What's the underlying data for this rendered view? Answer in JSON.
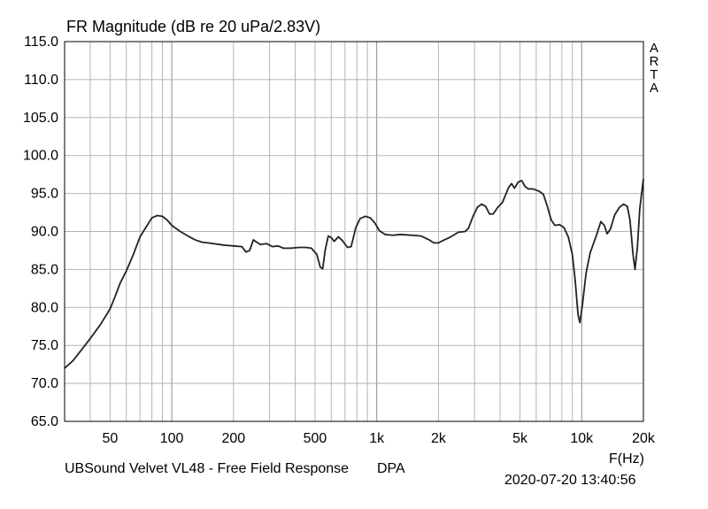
{
  "chart_data": {
    "type": "line",
    "title": "FR Magnitude (dB re 20 uPa/2.83V)",
    "xlabel": "F(Hz)",
    "ylabel": "",
    "x_scale": "log",
    "xlim": [
      30,
      20000
    ],
    "ylim": [
      65,
      115
    ],
    "grid": true,
    "x_ticks": [
      {
        "value": 50,
        "label": "50"
      },
      {
        "value": 100,
        "label": "100"
      },
      {
        "value": 200,
        "label": "200"
      },
      {
        "value": 500,
        "label": "500"
      },
      {
        "value": 1000,
        "label": "1k"
      },
      {
        "value": 2000,
        "label": "2k"
      },
      {
        "value": 5000,
        "label": "5k"
      },
      {
        "value": 10000,
        "label": "10k"
      },
      {
        "value": 20000,
        "label": "20k"
      }
    ],
    "y_ticks": [
      {
        "value": 65,
        "label": "65.0"
      },
      {
        "value": 70,
        "label": "70.0"
      },
      {
        "value": 75,
        "label": "75.0"
      },
      {
        "value": 80,
        "label": "80.0"
      },
      {
        "value": 85,
        "label": "85.0"
      },
      {
        "value": 90,
        "label": "90.0"
      },
      {
        "value": 95,
        "label": "95.0"
      },
      {
        "value": 100,
        "label": "100.0"
      },
      {
        "value": 105,
        "label": "105.0"
      },
      {
        "value": 110,
        "label": "110.0"
      },
      {
        "value": 115,
        "label": "115.0"
      }
    ],
    "series": [
      {
        "values": [
          [
            30,
            72.0
          ],
          [
            33,
            73.0
          ],
          [
            36,
            74.3
          ],
          [
            40,
            75.9
          ],
          [
            45,
            77.8
          ],
          [
            50,
            79.8
          ],
          [
            53,
            81.5
          ],
          [
            56,
            83.2
          ],
          [
            60,
            84.8
          ],
          [
            65,
            87.0
          ],
          [
            70,
            89.3
          ],
          [
            75,
            90.6
          ],
          [
            80,
            91.8
          ],
          [
            85,
            92.1
          ],
          [
            90,
            92.0
          ],
          [
            95,
            91.5
          ],
          [
            100,
            90.8
          ],
          [
            110,
            90.0
          ],
          [
            120,
            89.4
          ],
          [
            130,
            88.9
          ],
          [
            140,
            88.6
          ],
          [
            160,
            88.4
          ],
          [
            180,
            88.2
          ],
          [
            200,
            88.1
          ],
          [
            220,
            88.0
          ],
          [
            230,
            87.3
          ],
          [
            240,
            87.5
          ],
          [
            250,
            88.9
          ],
          [
            270,
            88.3
          ],
          [
            290,
            88.4
          ],
          [
            310,
            88.0
          ],
          [
            330,
            88.1
          ],
          [
            350,
            87.8
          ],
          [
            380,
            87.8
          ],
          [
            420,
            87.9
          ],
          [
            450,
            87.9
          ],
          [
            480,
            87.8
          ],
          [
            510,
            87.0
          ],
          [
            530,
            85.3
          ],
          [
            545,
            85.1
          ],
          [
            560,
            87.5
          ],
          [
            580,
            89.4
          ],
          [
            600,
            89.2
          ],
          [
            620,
            88.7
          ],
          [
            650,
            89.3
          ],
          [
            680,
            88.8
          ],
          [
            720,
            87.9
          ],
          [
            750,
            88.0
          ],
          [
            790,
            90.5
          ],
          [
            830,
            91.7
          ],
          [
            880,
            92.0
          ],
          [
            930,
            91.8
          ],
          [
            980,
            91.1
          ],
          [
            1030,
            90.1
          ],
          [
            1100,
            89.6
          ],
          [
            1200,
            89.5
          ],
          [
            1300,
            89.6
          ],
          [
            1500,
            89.5
          ],
          [
            1650,
            89.4
          ],
          [
            1800,
            88.9
          ],
          [
            1900,
            88.5
          ],
          [
            2000,
            88.5
          ],
          [
            2100,
            88.8
          ],
          [
            2300,
            89.3
          ],
          [
            2500,
            89.9
          ],
          [
            2700,
            90.0
          ],
          [
            2800,
            90.4
          ],
          [
            2950,
            92.0
          ],
          [
            3100,
            93.2
          ],
          [
            3250,
            93.6
          ],
          [
            3400,
            93.3
          ],
          [
            3550,
            92.3
          ],
          [
            3700,
            92.3
          ],
          [
            3900,
            93.2
          ],
          [
            4100,
            93.8
          ],
          [
            4250,
            94.8
          ],
          [
            4400,
            95.8
          ],
          [
            4550,
            96.3
          ],
          [
            4700,
            95.7
          ],
          [
            4900,
            96.5
          ],
          [
            5100,
            96.7
          ],
          [
            5300,
            95.9
          ],
          [
            5500,
            95.6
          ],
          [
            5800,
            95.6
          ],
          [
            6200,
            95.3
          ],
          [
            6500,
            94.9
          ],
          [
            6800,
            93.3
          ],
          [
            7100,
            91.5
          ],
          [
            7400,
            90.8
          ],
          [
            7800,
            90.9
          ],
          [
            8200,
            90.5
          ],
          [
            8600,
            89.3
          ],
          [
            9000,
            87.0
          ],
          [
            9300,
            83.5
          ],
          [
            9600,
            79.0
          ],
          [
            9800,
            78.0
          ],
          [
            10100,
            80.5
          ],
          [
            10500,
            84.5
          ],
          [
            11000,
            87.2
          ],
          [
            11700,
            89.2
          ],
          [
            12400,
            91.3
          ],
          [
            12900,
            90.8
          ],
          [
            13300,
            89.7
          ],
          [
            13800,
            90.3
          ],
          [
            14500,
            92.2
          ],
          [
            15300,
            93.2
          ],
          [
            16000,
            93.6
          ],
          [
            16700,
            93.3
          ],
          [
            17200,
            91.5
          ],
          [
            17800,
            87.0
          ],
          [
            18200,
            85.0
          ],
          [
            18700,
            88.0
          ],
          [
            19200,
            93.0
          ],
          [
            20000,
            96.9
          ]
        ]
      }
    ],
    "annotations": [
      "A",
      "R",
      "T",
      "A"
    ]
  },
  "footer": {
    "measurement": "UBSound Velvet VL48 - Free Field Response",
    "microphone": "DPA",
    "timestamp": "2020-07-20  13:40:56"
  },
  "colors": {
    "grid": "#b4b4b4",
    "frame": "#000000",
    "curve": "#222222"
  }
}
